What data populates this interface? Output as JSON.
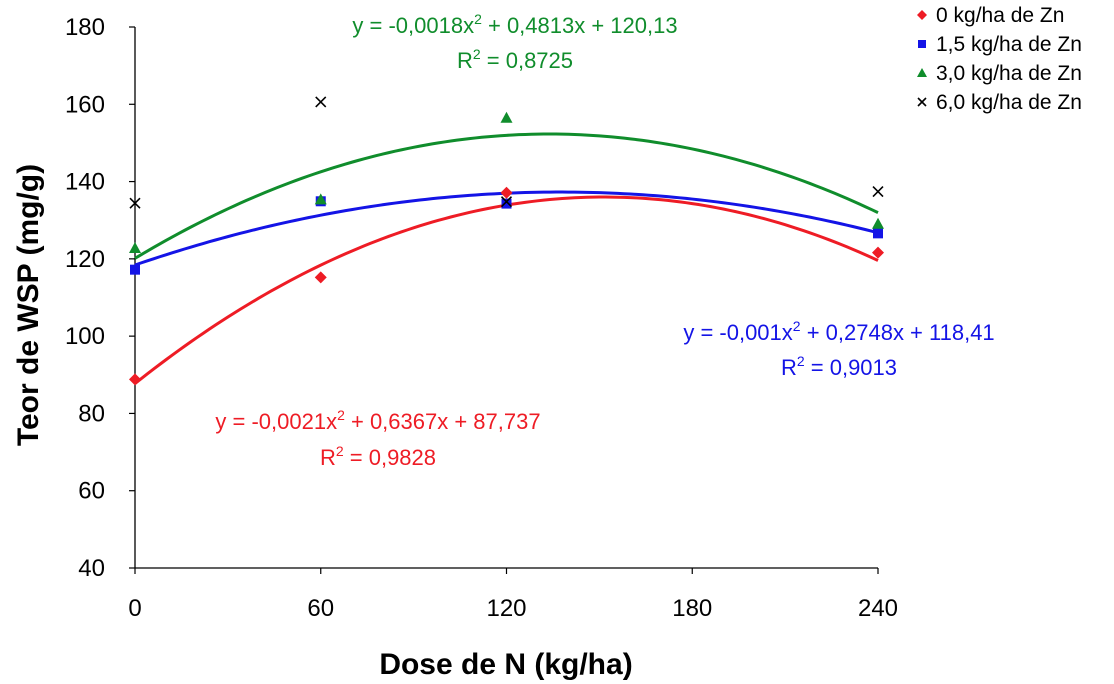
{
  "chart_data": {
    "type": "scatter",
    "xlabel": "Dose de N (kg/ha)",
    "ylabel": "Teor de WSP (mg/g)",
    "xlim": [
      0,
      240
    ],
    "ylim": [
      40,
      180
    ],
    "x_ticks": [
      0,
      60,
      120,
      180,
      240
    ],
    "y_ticks": [
      40,
      60,
      80,
      100,
      120,
      140,
      160,
      180
    ],
    "x_tick_labels": [
      "0",
      "60",
      "120",
      "180",
      "240"
    ],
    "y_tick_labels": [
      "40",
      "60",
      "80",
      "100",
      "120",
      "140",
      "160",
      "180"
    ],
    "grid": false,
    "legend_position": "top-right",
    "series": [
      {
        "name": "0 kg/ha de Zn",
        "marker": "diamond",
        "color": "#ee1c25",
        "x": [
          0,
          60,
          120,
          240
        ],
        "y": [
          88.8,
          115.2,
          137.1,
          121.6
        ],
        "trend": {
          "a": -0.0021,
          "b": 0.6367,
          "c": 87.737
        },
        "equation": "y = -0,0021x",
        "equation_rest": " + 0,6367x + 87,737",
        "r2_label": "R",
        "r2_value": " = 0,9828"
      },
      {
        "name": "1,5 kg/ha de Zn",
        "marker": "square",
        "color": "#1414e6",
        "x": [
          0,
          60,
          120,
          240
        ],
        "y": [
          117.2,
          134.9,
          134.3,
          126.6
        ],
        "trend": {
          "a": -0.001,
          "b": 0.2748,
          "c": 118.41
        },
        "equation": "y = -0,001x",
        "equation_rest": " + 0,2748x + 118,41",
        "r2_label": "R",
        "r2_value": " = 0,9013"
      },
      {
        "name": "3,0 kg/ha de Zn",
        "marker": "triangle",
        "color": "#108d2c",
        "x": [
          0,
          60,
          120,
          240
        ],
        "y": [
          122.8,
          135.4,
          156.5,
          129.1
        ],
        "trend": {
          "a": -0.0018,
          "b": 0.4813,
          "c": 120.13
        },
        "equation": "y = -0,0018x",
        "equation_rest": " + 0,4813x + 120,13",
        "r2_label": "R",
        "r2_value": " = 0,8725"
      },
      {
        "name": "6,0 kg/ha de Zn",
        "marker": "x",
        "color": "#000000",
        "x": [
          0,
          60,
          120,
          240
        ],
        "y": [
          134.4,
          160.6,
          134.8,
          137.4
        ]
      }
    ]
  }
}
